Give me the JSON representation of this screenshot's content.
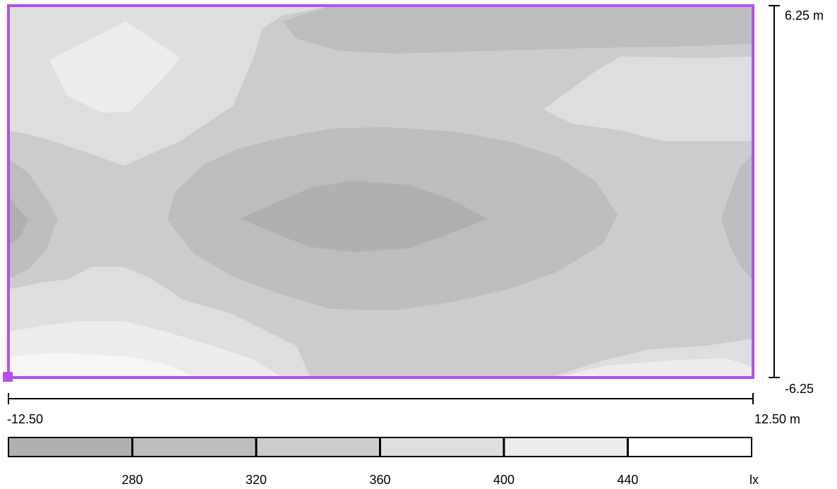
{
  "chart_data": {
    "type": "heatmap",
    "title": "",
    "x_axis": {
      "min": -12.5,
      "max": 12.5,
      "min_label": "-12.50",
      "max_label": "12.50 m"
    },
    "y_axis": {
      "min": -6.25,
      "max": 6.25,
      "min_label": "-6.25",
      "max_label": "6.25 m"
    },
    "legend": {
      "unit": "lx",
      "unit_label": "lx",
      "bins": [
        {
          "from": null,
          "to": 280,
          "color": "#b0b0b0"
        },
        {
          "from": 280,
          "to": 320,
          "color": "#bdbdbd"
        },
        {
          "from": 320,
          "to": 360,
          "color": "#cccccc"
        },
        {
          "from": 360,
          "to": 400,
          "color": "#dedede"
        },
        {
          "from": 400,
          "to": 440,
          "color": "#ececec"
        },
        {
          "from": 440,
          "to": null,
          "color": "#ffffff"
        }
      ],
      "tick_labels": [
        "280",
        "320",
        "360",
        "400",
        "440"
      ]
    },
    "contour_colors": {
      "c280": "#b0b0b0",
      "c320": "#bdbdbd",
      "c360": "#cccccc",
      "c400": "#dedede",
      "c440": "#ececec",
      "c480": "#f6f6f6"
    },
    "boundary_color": "#b64ef0",
    "grid": false
  }
}
